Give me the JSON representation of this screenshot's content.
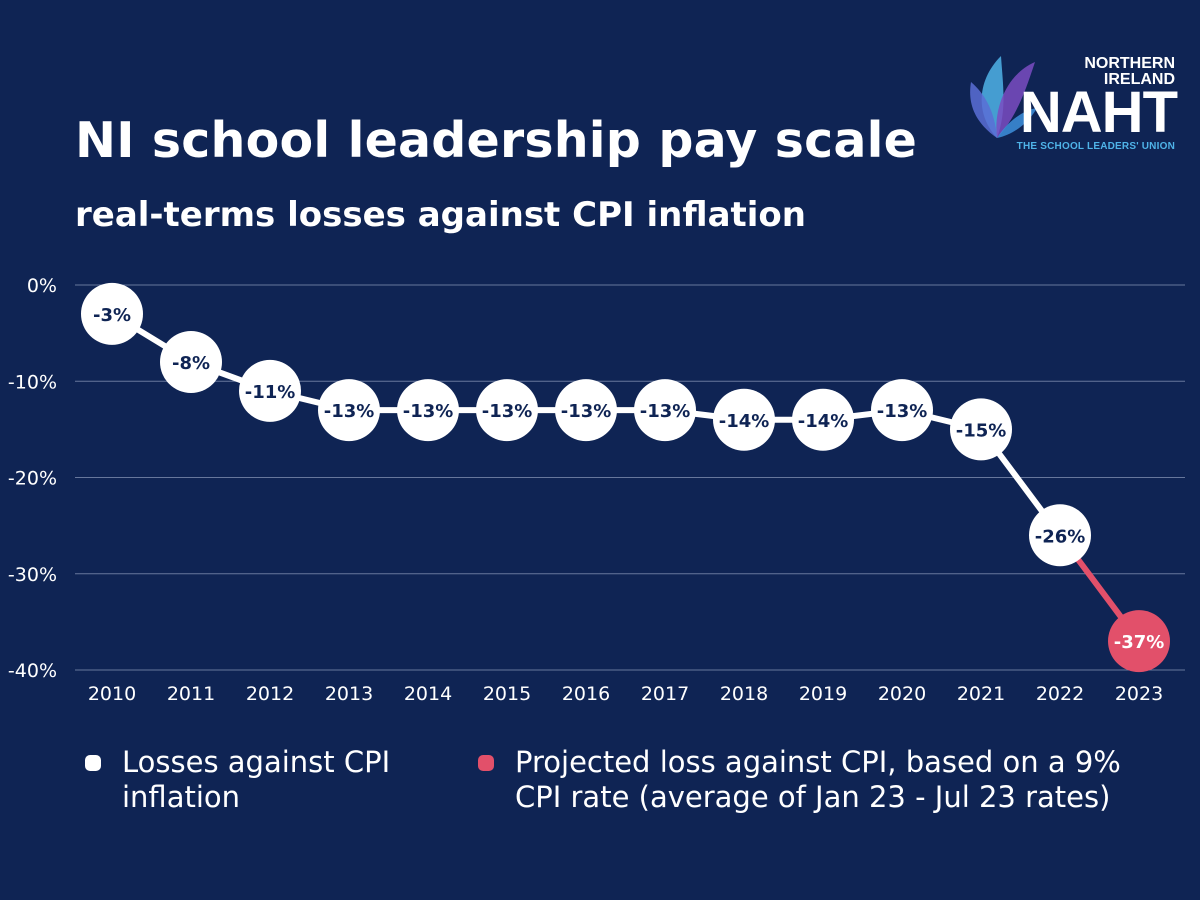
{
  "header": {
    "title": "NI school leadership pay scale",
    "subtitle": "real-terms losses against CPI inflation"
  },
  "logo": {
    "line1": "NORTHERN",
    "line2": "IRELAND",
    "name": "NAHT",
    "tagline": "THE SCHOOL LEADERS' UNION"
  },
  "colors": {
    "background": "#0f2454",
    "actual": "#ffffff",
    "projected": "#e2506a",
    "label_text": "#0f2454",
    "logo_blue": "#4fb3e8",
    "logo_purple": "#7a4cc2"
  },
  "chart_data": {
    "type": "line",
    "title": "NI school leadership pay scale",
    "subtitle": "real-terms losses against CPI inflation",
    "xlabel": "",
    "ylabel": "",
    "ylim": [
      -40,
      0
    ],
    "y_ticks": [
      0,
      -10,
      -20,
      -30,
      -40
    ],
    "y_tick_labels": [
      "0%",
      "-10%",
      "-20%",
      "-30%",
      "-40%"
    ],
    "grid": true,
    "categories": [
      "2010",
      "2011",
      "2012",
      "2013",
      "2014",
      "2015",
      "2016",
      "2017",
      "2018",
      "2019",
      "2020",
      "2021",
      "2022",
      "2023"
    ],
    "series": [
      {
        "name": "Losses against CPI inflation",
        "color": "#ffffff",
        "plotted": [
          -3,
          -8,
          -11,
          -13,
          -13,
          -13,
          -13,
          -13,
          -14,
          -14,
          -13,
          -15,
          -26,
          null
        ],
        "labels": [
          "-3%",
          "-8%",
          "-11%",
          "-13%",
          "-13%",
          "-13%",
          "-13%",
          "-13%",
          "-14%",
          "-14%",
          "-13%",
          "-15%",
          "-26%",
          null
        ]
      },
      {
        "name": "Projected loss against CPI, based on a 9% CPI rate (average of Jan 23 - Jul 23 rates)",
        "color": "#e2506a",
        "plotted": [
          null,
          null,
          null,
          null,
          null,
          null,
          null,
          null,
          null,
          null,
          null,
          null,
          -26,
          -37
        ],
        "labels": [
          null,
          null,
          null,
          null,
          null,
          null,
          null,
          null,
          null,
          null,
          null,
          null,
          null,
          "-37%"
        ]
      }
    ],
    "legend": {
      "position": "bottom",
      "items": [
        {
          "label": "Losses against CPI inflation",
          "color": "#ffffff"
        },
        {
          "label": "Projected loss against CPI, based on a 9% CPI rate (average of Jan 23 - Jul 23 rates)",
          "color": "#e2506a"
        }
      ]
    }
  }
}
